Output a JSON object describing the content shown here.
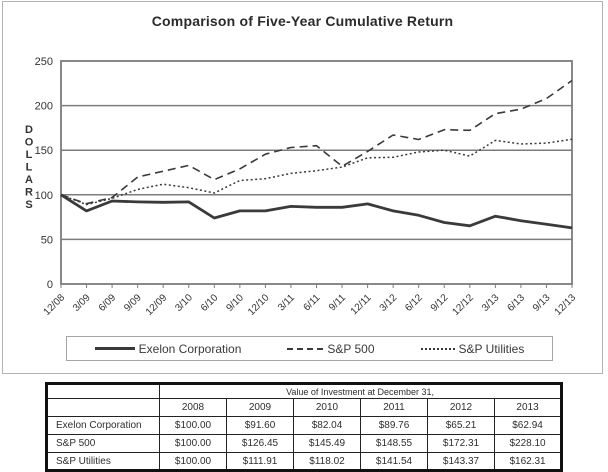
{
  "figure": {
    "title": "Comparison of Five-Year Cumulative Return",
    "legend": [
      {
        "name": "Exelon Corporation",
        "style": "solid"
      },
      {
        "name": "S&P 500",
        "style": "dashed"
      },
      {
        "name": "S&P Utilities",
        "style": "dotted"
      }
    ]
  },
  "chart_data": {
    "type": "line",
    "title": "Comparison of Five-Year Cumulative Return",
    "xlabel": "",
    "ylabel": "DOLLARS",
    "ylim": [
      0,
      250
    ],
    "yticks": [
      0,
      50,
      100,
      150,
      200,
      250
    ],
    "grid": "horizontal",
    "legend_position": "bottom",
    "x": [
      "12/08",
      "3/09",
      "6/09",
      "9/09",
      "12/09",
      "3/10",
      "6/10",
      "9/10",
      "12/10",
      "3/11",
      "6/11",
      "9/11",
      "12/11",
      "3/12",
      "6/12",
      "9/12",
      "12/12",
      "3/13",
      "6/13",
      "9/13",
      "12/13"
    ],
    "series": [
      {
        "name": "Exelon Corporation",
        "style": "solid",
        "values": [
          100,
          82,
          93,
          92,
          91.6,
          92,
          74,
          82,
          82,
          87,
          86,
          86,
          89.8,
          82,
          77,
          69,
          65.2,
          76,
          71,
          67,
          62.9
        ]
      },
      {
        "name": "S&P 500",
        "style": "dashed",
        "values": [
          100,
          90,
          97,
          120,
          126.5,
          133,
          117,
          129,
          145.5,
          153,
          155,
          132,
          148.6,
          167,
          162,
          173,
          172.3,
          191,
          196,
          208,
          228.1
        ]
      },
      {
        "name": "S&P Utilities",
        "style": "dotted",
        "values": [
          100,
          89,
          96,
          106,
          111.9,
          108,
          102,
          116,
          118,
          124,
          127,
          131,
          141.5,
          142,
          148,
          150,
          143.4,
          161,
          157,
          158,
          162.3
        ]
      }
    ]
  },
  "table": {
    "caption": "Value of Investment at December 31,",
    "col_headers": [
      "2008",
      "2009",
      "2010",
      "2011",
      "2012",
      "2013"
    ],
    "rows": [
      {
        "label": "Exelon Corporation",
        "values": [
          "$100.00",
          "$91.60",
          "$82.04",
          "$89.76",
          "$65.21",
          "$62.94"
        ]
      },
      {
        "label": "S&P 500",
        "values": [
          "$100.00",
          "$126.45",
          "$145.49",
          "$148.55",
          "$172.31",
          "$228.10"
        ]
      },
      {
        "label": "S&P Utilities",
        "values": [
          "$100.00",
          "$111.91",
          "$118.02",
          "$141.54",
          "$143.37",
          "$162.31"
        ]
      }
    ]
  },
  "colors": {
    "line": "#3a3a3a",
    "grid": "#7c7c7c",
    "axis_text": "#333333",
    "figure_border": "#b3b3b3",
    "table_border": "#111111"
  }
}
